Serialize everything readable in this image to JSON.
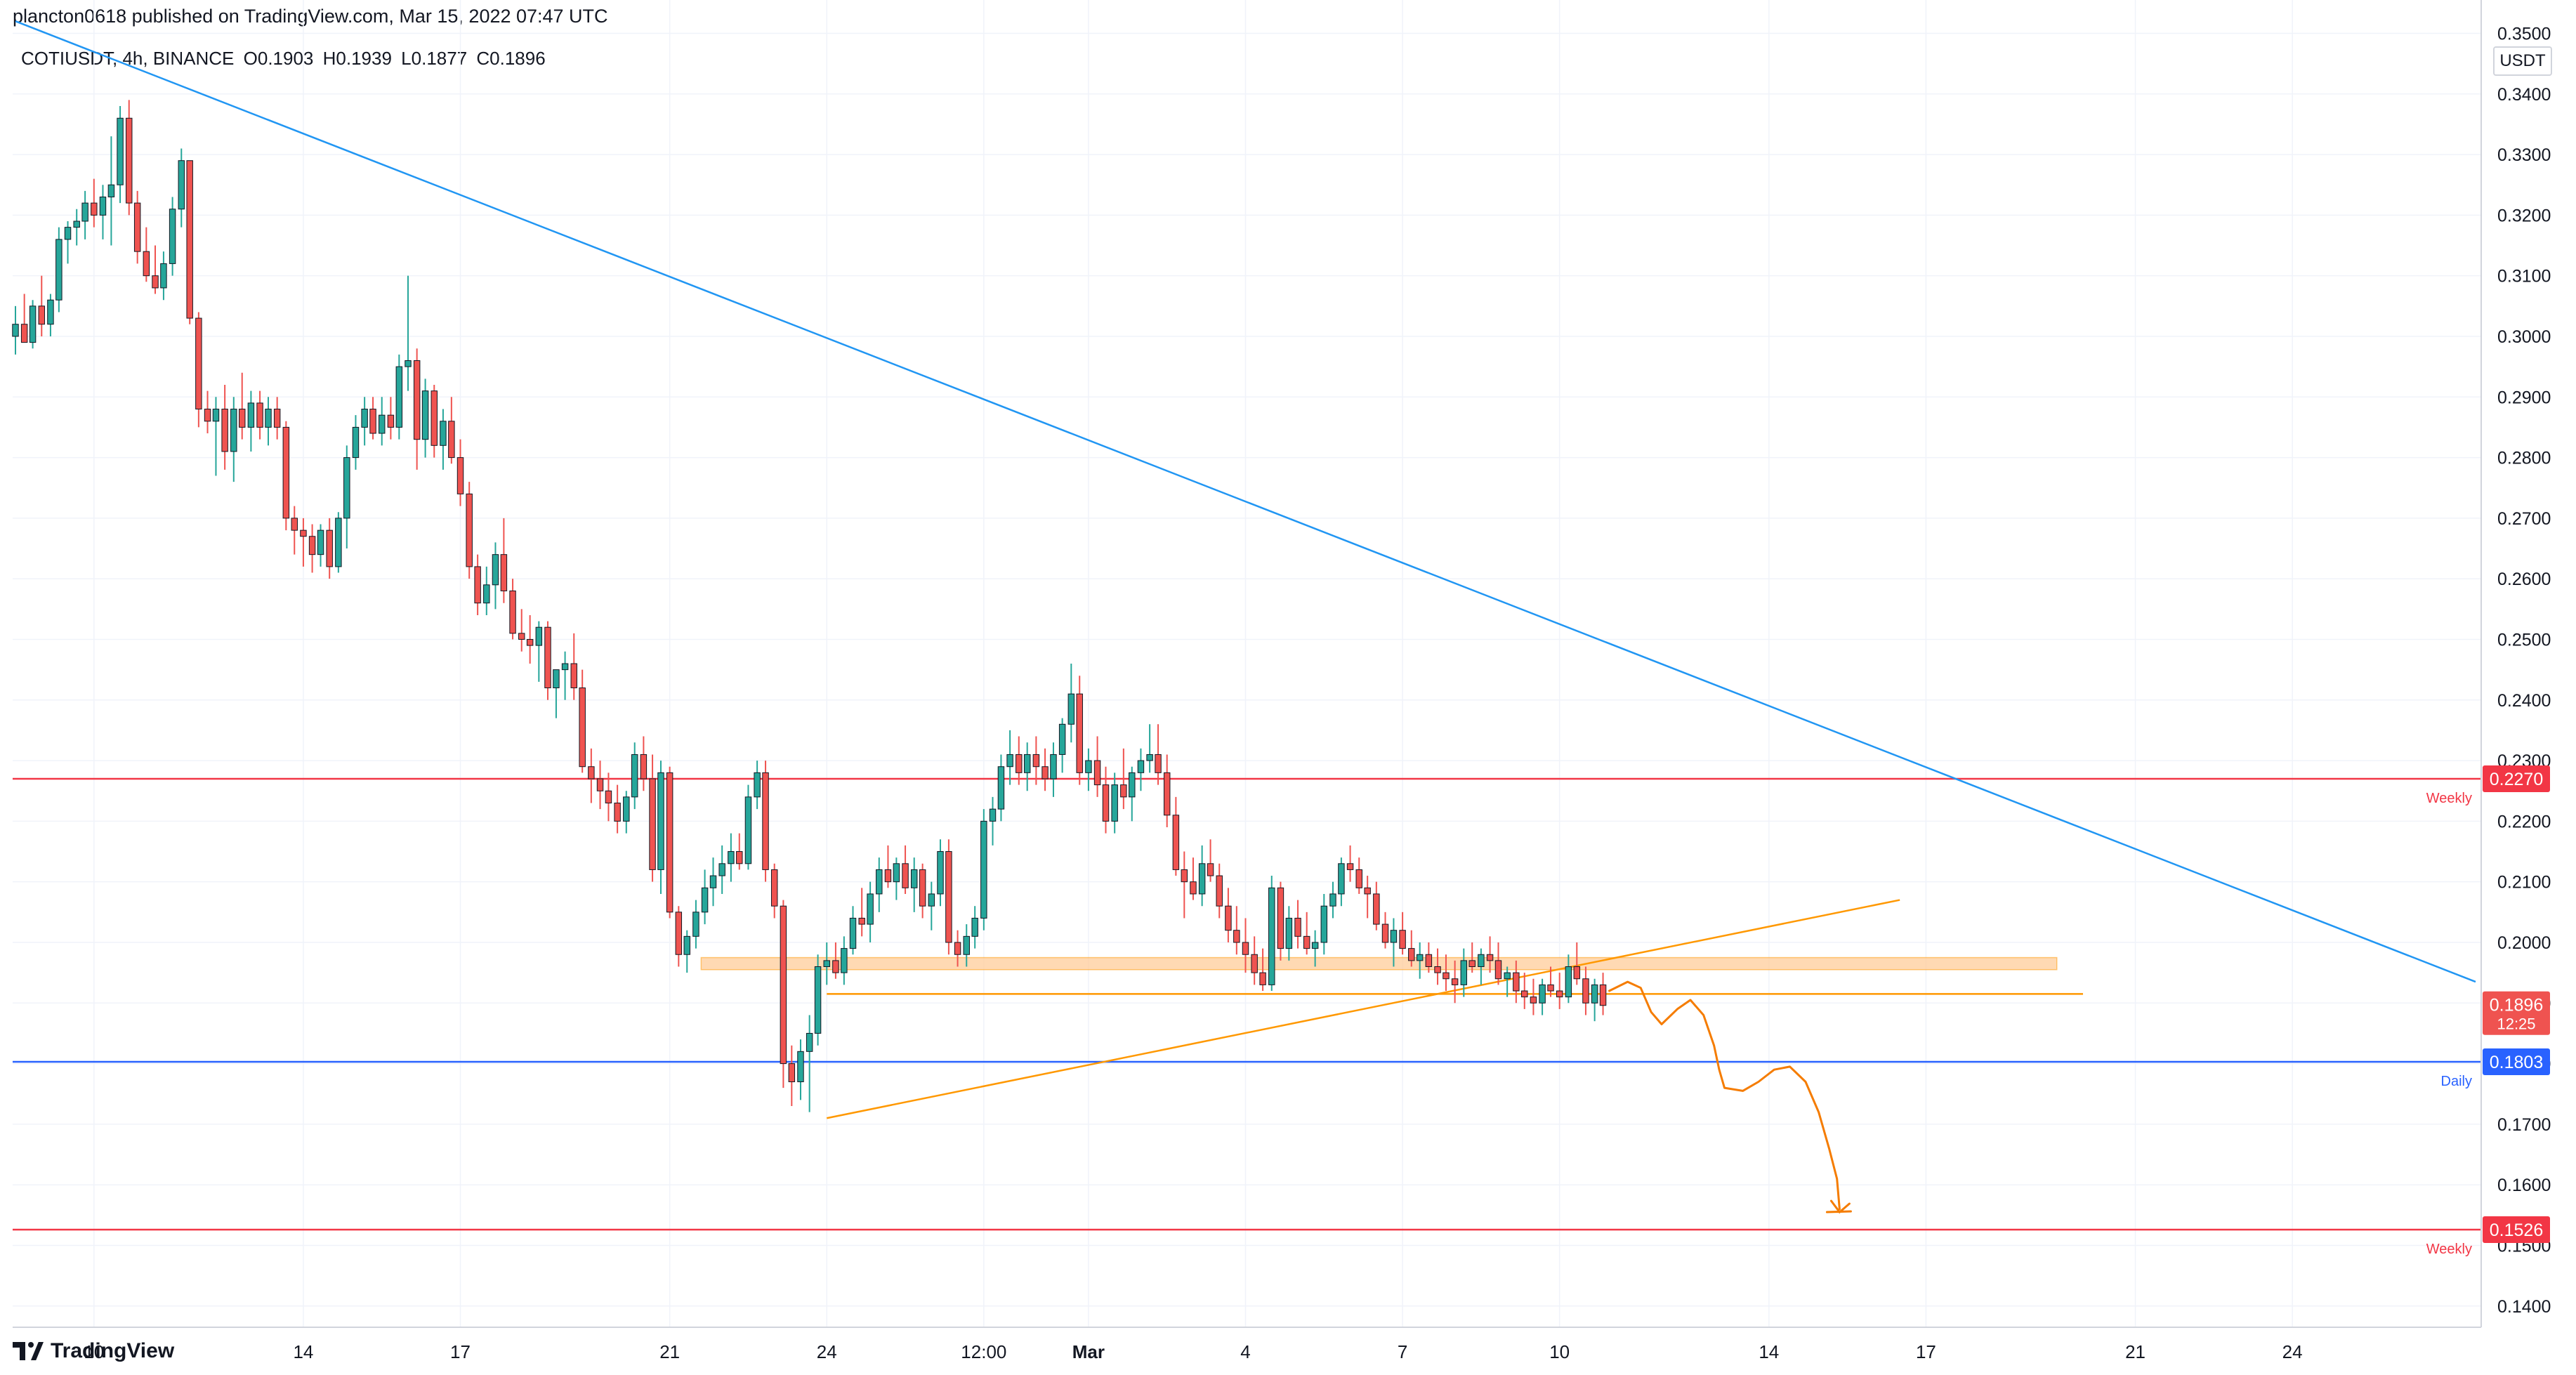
{
  "header": {
    "published_text": "plancton0618 published on TradingView.com, Mar 15, 2022 07:47 UTC"
  },
  "symbol_bar": {
    "symbol": "COTIUSDT, 4h, BINANCE",
    "open": "O0.1903",
    "high": "H0.1939",
    "low": "L0.1877",
    "close": "C0.1896"
  },
  "price_axis": {
    "currency": "USDT"
  },
  "footer": {
    "brand": "TradingView"
  },
  "colors": {
    "up": "#26a69a",
    "down": "#ef5350",
    "weekly_level": "#f23645",
    "daily_level": "#2962ff",
    "trendline": "#2196f3",
    "orange": "#ff9800",
    "zone": "#ffcc99",
    "drawing": "#f57c00"
  },
  "chart_data": {
    "type": "candlestick",
    "timeframe": "4h",
    "ylim": [
      0.1365,
      0.3555
    ],
    "y_ticks": [
      "0.1400",
      "0.1500",
      "0.1600",
      "0.1700",
      "0.1800",
      "0.1900",
      "0.2000",
      "0.2100",
      "0.2200",
      "0.2300",
      "0.2400",
      "0.2500",
      "0.2600",
      "0.2700",
      "0.2800",
      "0.2900",
      "0.3000",
      "0.3100",
      "0.3200",
      "0.3300",
      "0.3400",
      "0.3500"
    ],
    "x_ticks": [
      {
        "label": "10",
        "day": 10
      },
      {
        "label": "14",
        "day": 14
      },
      {
        "label": "17",
        "day": 17
      },
      {
        "label": "21",
        "day": 21
      },
      {
        "label": "24",
        "day": 24
      },
      {
        "label": "12:00",
        "day": 27
      },
      {
        "label": "Mar",
        "day": 29
      },
      {
        "label": "4",
        "day": 32
      },
      {
        "label": "7",
        "day": 35
      },
      {
        "label": "10",
        "day": 38
      },
      {
        "label": "14",
        "day": 42
      },
      {
        "label": "17",
        "day": 45
      },
      {
        "label": "21",
        "day": 49
      },
      {
        "label": "24",
        "day": 52
      }
    ],
    "day_range": [
      8.5,
      55.5
    ],
    "levels": [
      {
        "name": "Weekly",
        "price": 0.227,
        "label": "0.2270",
        "color": "#f23645"
      },
      {
        "name": "Daily",
        "price": 0.1803,
        "label": "0.1803",
        "color": "#2962ff"
      },
      {
        "name": "Weekly",
        "price": 0.1526,
        "label": "0.1526",
        "color": "#f23645"
      }
    ],
    "last_price": {
      "label": "0.1896",
      "countdown": "12:25",
      "price": 0.1896
    },
    "candles": [
      [
        8.5,
        0.3,
        0.305,
        0.297,
        0.302
      ],
      [
        8.67,
        0.302,
        0.307,
        0.299,
        0.299
      ],
      [
        8.83,
        0.299,
        0.306,
        0.298,
        0.305
      ],
      [
        9.0,
        0.305,
        0.31,
        0.3,
        0.302
      ],
      [
        9.17,
        0.302,
        0.307,
        0.3,
        0.306
      ],
      [
        9.33,
        0.306,
        0.318,
        0.304,
        0.316
      ],
      [
        9.5,
        0.316,
        0.319,
        0.312,
        0.318
      ],
      [
        9.67,
        0.318,
        0.321,
        0.315,
        0.319
      ],
      [
        9.83,
        0.319,
        0.324,
        0.316,
        0.322
      ],
      [
        10.0,
        0.322,
        0.326,
        0.318,
        0.32
      ],
      [
        10.17,
        0.32,
        0.325,
        0.316,
        0.323
      ],
      [
        10.33,
        0.323,
        0.333,
        0.315,
        0.325
      ],
      [
        10.5,
        0.325,
        0.338,
        0.322,
        0.336
      ],
      [
        10.67,
        0.336,
        0.339,
        0.32,
        0.322
      ],
      [
        10.83,
        0.322,
        0.324,
        0.312,
        0.314
      ],
      [
        11.0,
        0.314,
        0.318,
        0.309,
        0.31
      ],
      [
        11.17,
        0.31,
        0.315,
        0.307,
        0.308
      ],
      [
        11.33,
        0.308,
        0.314,
        0.306,
        0.312
      ],
      [
        11.5,
        0.312,
        0.323,
        0.31,
        0.321
      ],
      [
        11.67,
        0.321,
        0.331,
        0.318,
        0.329
      ],
      [
        11.83,
        0.329,
        0.329,
        0.302,
        0.303
      ],
      [
        12.0,
        0.303,
        0.304,
        0.285,
        0.288
      ],
      [
        12.17,
        0.288,
        0.291,
        0.284,
        0.286
      ],
      [
        12.33,
        0.286,
        0.29,
        0.277,
        0.288
      ],
      [
        12.5,
        0.288,
        0.292,
        0.278,
        0.281
      ],
      [
        12.67,
        0.281,
        0.29,
        0.276,
        0.288
      ],
      [
        12.83,
        0.288,
        0.294,
        0.283,
        0.285
      ],
      [
        13.0,
        0.285,
        0.291,
        0.281,
        0.289
      ],
      [
        13.17,
        0.289,
        0.291,
        0.283,
        0.285
      ],
      [
        13.33,
        0.285,
        0.29,
        0.282,
        0.288
      ],
      [
        13.5,
        0.288,
        0.29,
        0.283,
        0.285
      ],
      [
        13.67,
        0.285,
        0.286,
        0.268,
        0.27
      ],
      [
        13.83,
        0.27,
        0.272,
        0.264,
        0.268
      ],
      [
        14.0,
        0.268,
        0.27,
        0.262,
        0.267
      ],
      [
        14.17,
        0.267,
        0.269,
        0.261,
        0.264
      ],
      [
        14.33,
        0.264,
        0.269,
        0.262,
        0.268
      ],
      [
        14.5,
        0.268,
        0.27,
        0.26,
        0.262
      ],
      [
        14.67,
        0.262,
        0.271,
        0.261,
        0.27
      ],
      [
        14.83,
        0.27,
        0.282,
        0.265,
        0.28
      ],
      [
        15.0,
        0.28,
        0.287,
        0.278,
        0.285
      ],
      [
        15.17,
        0.285,
        0.29,
        0.282,
        0.288
      ],
      [
        15.33,
        0.288,
        0.29,
        0.283,
        0.284
      ],
      [
        15.5,
        0.284,
        0.29,
        0.282,
        0.287
      ],
      [
        15.67,
        0.287,
        0.29,
        0.283,
        0.285
      ],
      [
        15.83,
        0.285,
        0.297,
        0.283,
        0.295
      ],
      [
        16.0,
        0.295,
        0.31,
        0.291,
        0.296
      ],
      [
        16.17,
        0.296,
        0.298,
        0.278,
        0.283
      ],
      [
        16.33,
        0.283,
        0.293,
        0.28,
        0.291
      ],
      [
        16.5,
        0.291,
        0.292,
        0.28,
        0.282
      ],
      [
        16.67,
        0.282,
        0.288,
        0.278,
        0.286
      ],
      [
        16.83,
        0.286,
        0.29,
        0.279,
        0.28
      ],
      [
        17.0,
        0.28,
        0.283,
        0.272,
        0.274
      ],
      [
        17.17,
        0.274,
        0.276,
        0.26,
        0.262
      ],
      [
        17.33,
        0.262,
        0.264,
        0.254,
        0.256
      ],
      [
        17.5,
        0.256,
        0.262,
        0.254,
        0.259
      ],
      [
        17.67,
        0.259,
        0.266,
        0.255,
        0.264
      ],
      [
        17.83,
        0.264,
        0.27,
        0.256,
        0.258
      ],
      [
        18.0,
        0.258,
        0.26,
        0.25,
        0.251
      ],
      [
        18.17,
        0.251,
        0.255,
        0.248,
        0.25
      ],
      [
        18.33,
        0.25,
        0.254,
        0.246,
        0.249
      ],
      [
        18.5,
        0.249,
        0.253,
        0.243,
        0.252
      ],
      [
        18.67,
        0.252,
        0.253,
        0.24,
        0.242
      ],
      [
        18.83,
        0.242,
        0.244,
        0.237,
        0.245
      ],
      [
        19.0,
        0.245,
        0.248,
        0.24,
        0.246
      ],
      [
        19.17,
        0.246,
        0.251,
        0.24,
        0.242
      ],
      [
        19.33,
        0.242,
        0.245,
        0.228,
        0.229
      ],
      [
        19.5,
        0.229,
        0.232,
        0.223,
        0.227
      ],
      [
        19.67,
        0.227,
        0.23,
        0.222,
        0.225
      ],
      [
        19.83,
        0.225,
        0.228,
        0.22,
        0.223
      ],
      [
        20.0,
        0.223,
        0.226,
        0.218,
        0.22
      ],
      [
        20.17,
        0.22,
        0.225,
        0.218,
        0.224
      ],
      [
        20.33,
        0.224,
        0.233,
        0.222,
        0.231
      ],
      [
        20.5,
        0.231,
        0.234,
        0.225,
        0.227
      ],
      [
        20.67,
        0.227,
        0.231,
        0.21,
        0.212
      ],
      [
        20.83,
        0.212,
        0.23,
        0.208,
        0.228
      ],
      [
        21.0,
        0.228,
        0.229,
        0.204,
        0.205
      ],
      [
        21.17,
        0.205,
        0.206,
        0.196,
        0.198
      ],
      [
        21.33,
        0.198,
        0.202,
        0.195,
        0.201
      ],
      [
        21.5,
        0.201,
        0.207,
        0.199,
        0.205
      ],
      [
        21.67,
        0.205,
        0.212,
        0.203,
        0.209
      ],
      [
        21.83,
        0.209,
        0.214,
        0.206,
        0.211
      ],
      [
        22.0,
        0.211,
        0.216,
        0.208,
        0.213
      ],
      [
        22.17,
        0.213,
        0.218,
        0.21,
        0.215
      ],
      [
        22.33,
        0.215,
        0.218,
        0.212,
        0.213
      ],
      [
        22.5,
        0.213,
        0.226,
        0.212,
        0.224
      ],
      [
        22.67,
        0.224,
        0.23,
        0.222,
        0.228
      ],
      [
        22.83,
        0.228,
        0.23,
        0.21,
        0.212
      ],
      [
        23.0,
        0.212,
        0.213,
        0.204,
        0.206
      ],
      [
        23.17,
        0.206,
        0.207,
        0.176,
        0.18
      ],
      [
        23.33,
        0.18,
        0.183,
        0.173,
        0.177
      ],
      [
        23.5,
        0.177,
        0.184,
        0.174,
        0.182
      ],
      [
        23.67,
        0.182,
        0.188,
        0.172,
        0.185
      ],
      [
        23.83,
        0.185,
        0.198,
        0.183,
        0.196
      ],
      [
        24.0,
        0.196,
        0.2,
        0.193,
        0.197
      ],
      [
        24.17,
        0.197,
        0.2,
        0.194,
        0.195
      ],
      [
        24.33,
        0.195,
        0.201,
        0.193,
        0.199
      ],
      [
        24.5,
        0.199,
        0.206,
        0.198,
        0.204
      ],
      [
        24.67,
        0.204,
        0.209,
        0.201,
        0.203
      ],
      [
        24.83,
        0.203,
        0.21,
        0.2,
        0.208
      ],
      [
        25.0,
        0.208,
        0.214,
        0.205,
        0.212
      ],
      [
        25.17,
        0.212,
        0.216,
        0.209,
        0.21
      ],
      [
        25.33,
        0.21,
        0.214,
        0.207,
        0.213
      ],
      [
        25.5,
        0.213,
        0.216,
        0.208,
        0.209
      ],
      [
        25.67,
        0.209,
        0.214,
        0.205,
        0.212
      ],
      [
        25.83,
        0.212,
        0.213,
        0.204,
        0.206
      ],
      [
        26.0,
        0.206,
        0.21,
        0.202,
        0.208
      ],
      [
        26.17,
        0.208,
        0.217,
        0.206,
        0.215
      ],
      [
        26.33,
        0.215,
        0.217,
        0.198,
        0.2
      ],
      [
        26.5,
        0.2,
        0.202,
        0.196,
        0.198
      ],
      [
        26.67,
        0.198,
        0.203,
        0.196,
        0.201
      ],
      [
        26.83,
        0.201,
        0.206,
        0.199,
        0.204
      ],
      [
        27.0,
        0.204,
        0.222,
        0.202,
        0.22
      ],
      [
        27.17,
        0.22,
        0.224,
        0.216,
        0.222
      ],
      [
        27.33,
        0.222,
        0.231,
        0.22,
        0.229
      ],
      [
        27.5,
        0.229,
        0.235,
        0.226,
        0.231
      ],
      [
        27.67,
        0.231,
        0.234,
        0.226,
        0.228
      ],
      [
        27.83,
        0.228,
        0.233,
        0.225,
        0.231
      ],
      [
        28.0,
        0.231,
        0.234,
        0.226,
        0.229
      ],
      [
        28.17,
        0.229,
        0.232,
        0.225,
        0.227
      ],
      [
        28.33,
        0.227,
        0.233,
        0.224,
        0.231
      ],
      [
        28.5,
        0.231,
        0.237,
        0.228,
        0.236
      ],
      [
        28.67,
        0.236,
        0.246,
        0.233,
        0.241
      ],
      [
        28.83,
        0.241,
        0.244,
        0.226,
        0.228
      ],
      [
        29.0,
        0.228,
        0.232,
        0.225,
        0.23
      ],
      [
        29.17,
        0.23,
        0.234,
        0.224,
        0.226
      ],
      [
        29.33,
        0.226,
        0.229,
        0.218,
        0.22
      ],
      [
        29.5,
        0.22,
        0.228,
        0.218,
        0.226
      ],
      [
        29.67,
        0.226,
        0.232,
        0.222,
        0.224
      ],
      [
        29.83,
        0.224,
        0.229,
        0.22,
        0.228
      ],
      [
        30.0,
        0.228,
        0.232,
        0.225,
        0.23
      ],
      [
        30.17,
        0.23,
        0.236,
        0.228,
        0.231
      ],
      [
        30.33,
        0.231,
        0.236,
        0.226,
        0.228
      ],
      [
        30.5,
        0.228,
        0.231,
        0.219,
        0.221
      ],
      [
        30.67,
        0.221,
        0.224,
        0.211,
        0.212
      ],
      [
        30.83,
        0.212,
        0.215,
        0.204,
        0.21
      ],
      [
        31.0,
        0.21,
        0.214,
        0.207,
        0.208
      ],
      [
        31.17,
        0.208,
        0.216,
        0.206,
        0.213
      ],
      [
        31.33,
        0.213,
        0.217,
        0.21,
        0.211
      ],
      [
        31.5,
        0.211,
        0.213,
        0.204,
        0.206
      ],
      [
        31.67,
        0.206,
        0.209,
        0.2,
        0.202
      ],
      [
        31.83,
        0.202,
        0.206,
        0.198,
        0.2
      ],
      [
        32.0,
        0.2,
        0.204,
        0.195,
        0.198
      ],
      [
        32.17,
        0.198,
        0.201,
        0.193,
        0.195
      ],
      [
        32.33,
        0.195,
        0.199,
        0.192,
        0.193
      ],
      [
        32.5,
        0.193,
        0.211,
        0.192,
        0.209
      ],
      [
        32.67,
        0.209,
        0.21,
        0.197,
        0.199
      ],
      [
        32.83,
        0.199,
        0.206,
        0.197,
        0.204
      ],
      [
        33.0,
        0.204,
        0.207,
        0.199,
        0.201
      ],
      [
        33.17,
        0.201,
        0.205,
        0.198,
        0.199
      ],
      [
        33.33,
        0.199,
        0.202,
        0.196,
        0.2
      ],
      [
        33.5,
        0.2,
        0.208,
        0.198,
        0.206
      ],
      [
        33.67,
        0.206,
        0.21,
        0.204,
        0.208
      ],
      [
        33.83,
        0.208,
        0.214,
        0.206,
        0.213
      ],
      [
        34.0,
        0.213,
        0.216,
        0.21,
        0.212
      ],
      [
        34.17,
        0.212,
        0.214,
        0.208,
        0.209
      ],
      [
        34.33,
        0.209,
        0.211,
        0.204,
        0.208
      ],
      [
        34.5,
        0.208,
        0.21,
        0.202,
        0.203
      ],
      [
        34.67,
        0.203,
        0.205,
        0.199,
        0.2
      ],
      [
        34.83,
        0.2,
        0.204,
        0.196,
        0.202
      ],
      [
        35.0,
        0.202,
        0.205,
        0.198,
        0.199
      ],
      [
        35.17,
        0.199,
        0.202,
        0.196,
        0.197
      ],
      [
        35.33,
        0.197,
        0.2,
        0.194,
        0.198
      ],
      [
        35.5,
        0.198,
        0.2,
        0.195,
        0.196
      ],
      [
        35.67,
        0.196,
        0.199,
        0.193,
        0.195
      ],
      [
        35.83,
        0.195,
        0.198,
        0.192,
        0.194
      ],
      [
        36.0,
        0.194,
        0.197,
        0.19,
        0.193
      ],
      [
        36.17,
        0.193,
        0.199,
        0.191,
        0.197
      ],
      [
        36.33,
        0.197,
        0.2,
        0.195,
        0.196
      ],
      [
        36.5,
        0.196,
        0.199,
        0.193,
        0.198
      ],
      [
        36.67,
        0.198,
        0.201,
        0.195,
        0.197
      ],
      [
        36.83,
        0.197,
        0.2,
        0.193,
        0.194
      ],
      [
        37.0,
        0.194,
        0.196,
        0.191,
        0.195
      ],
      [
        37.17,
        0.195,
        0.197,
        0.19,
        0.192
      ],
      [
        37.33,
        0.192,
        0.195,
        0.189,
        0.191
      ],
      [
        37.5,
        0.191,
        0.194,
        0.188,
        0.19
      ],
      [
        37.67,
        0.19,
        0.194,
        0.188,
        0.193
      ],
      [
        37.83,
        0.193,
        0.196,
        0.191,
        0.192
      ],
      [
        38.0,
        0.192,
        0.195,
        0.189,
        0.191
      ],
      [
        38.17,
        0.191,
        0.198,
        0.19,
        0.196
      ],
      [
        38.33,
        0.196,
        0.2,
        0.193,
        0.194
      ],
      [
        38.5,
        0.194,
        0.196,
        0.188,
        0.19
      ],
      [
        38.67,
        0.19,
        0.194,
        0.187,
        0.193
      ],
      [
        38.83,
        0.193,
        0.195,
        0.188,
        0.1896
      ]
    ],
    "trendline": {
      "from": [
        8.5,
        0.352
      ],
      "to": [
        55.5,
        0.1935
      ]
    },
    "rising_support": {
      "from": [
        24.0,
        0.171
      ],
      "to": [
        44.5,
        0.207
      ]
    },
    "support_zone": {
      "x_from": 21.6,
      "x_to": 47.5,
      "y_from": 0.1955,
      "y_to": 0.1975
    },
    "support_line": {
      "x_from": 24.0,
      "x_to": 48.0,
      "price": 0.1915
    }
  }
}
